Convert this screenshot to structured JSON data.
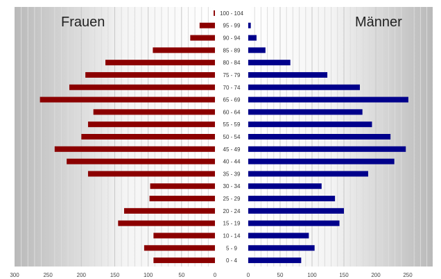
{
  "chart_data": {
    "type": "bar",
    "orientation": "horizontal",
    "variant": "population-pyramid",
    "categories": [
      "100 - 104",
      "95 - 99",
      "90 - 94",
      "85 - 89",
      "80 - 84",
      "75 - 79",
      "70 - 74",
      "65 - 69",
      "60 - 64",
      "55 - 59",
      "50 - 54",
      "45 - 49",
      "40 - 44",
      "35 - 39",
      "30 - 34",
      "25 - 29",
      "20 - 24",
      "15 - 19",
      "10 - 14",
      "5 - 9",
      "0 - 4"
    ],
    "series": [
      {
        "name": "Frauen",
        "color": "#8b0000",
        "values": [
          2,
          23,
          37,
          93,
          164,
          194,
          218,
          262,
          182,
          190,
          200,
          240,
          222,
          190,
          97,
          98,
          136,
          145,
          92,
          106,
          92
        ]
      },
      {
        "name": "Männer",
        "color": "#00008b",
        "values": [
          0,
          4,
          13,
          27,
          66,
          124,
          175,
          251,
          179,
          194,
          223,
          247,
          229,
          188,
          115,
          136,
          150,
          143,
          95,
          104,
          83
        ]
      }
    ],
    "xlim_left": [
      300,
      0
    ],
    "xlim_right": [
      0,
      300
    ],
    "xticks_left": [
      "300",
      "250",
      "200",
      "150",
      "100",
      "50",
      "0"
    ],
    "xticks_right": [
      "0",
      "50",
      "100",
      "150",
      "200",
      "250"
    ],
    "grid": true
  }
}
